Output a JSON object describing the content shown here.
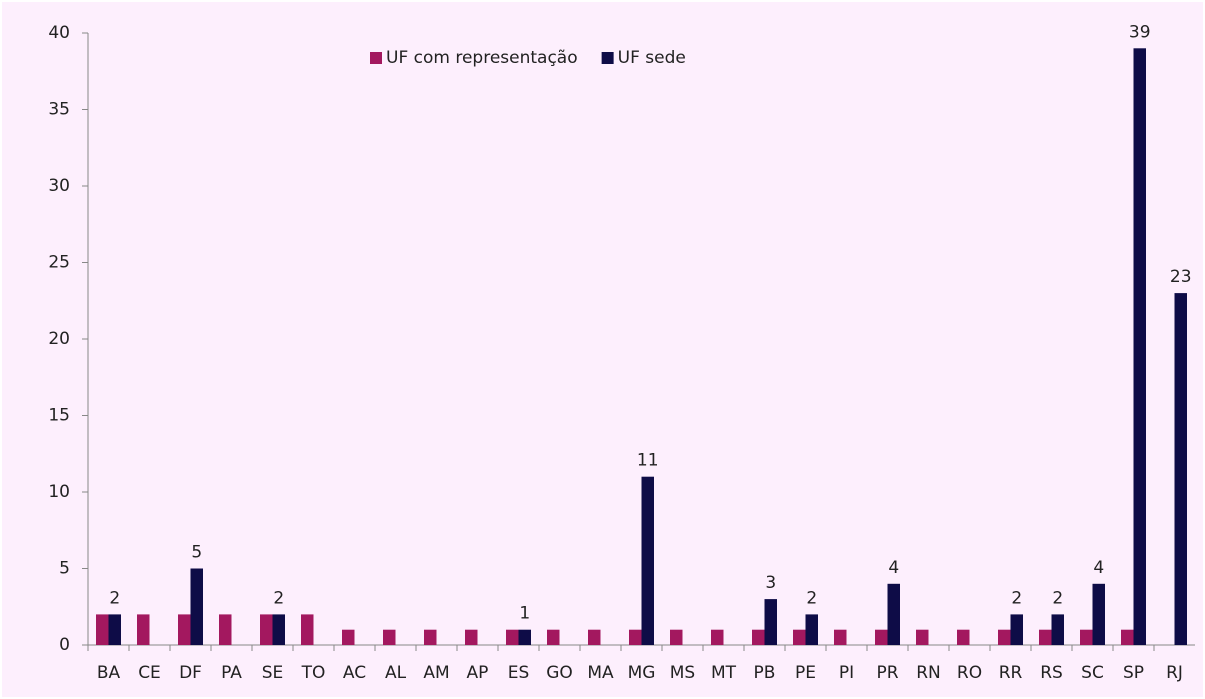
{
  "chart_data": {
    "type": "bar",
    "categories": [
      "BA",
      "CE",
      "DF",
      "PA",
      "SE",
      "TO",
      "AC",
      "AL",
      "AM",
      "AP",
      "ES",
      "GO",
      "MA",
      "MG",
      "MS",
      "MT",
      "PB",
      "PE",
      "PI",
      "PR",
      "RN",
      "RO",
      "RR",
      "RS",
      "SC",
      "SP",
      "RJ"
    ],
    "series": [
      {
        "name": "UF com representação",
        "color": "#a3185f",
        "values": [
          2,
          2,
          2,
          2,
          2,
          2,
          1,
          1,
          1,
          1,
          1,
          1,
          1,
          1,
          1,
          1,
          1,
          1,
          1,
          1,
          1,
          1,
          1,
          1,
          1,
          1,
          null
        ]
      },
      {
        "name": "UF sede",
        "color": "#0e0c47",
        "labels": true,
        "values": [
          2,
          null,
          5,
          null,
          2,
          null,
          null,
          null,
          null,
          null,
          1,
          null,
          null,
          11,
          null,
          null,
          3,
          2,
          null,
          4,
          null,
          null,
          2,
          2,
          4,
          39,
          23
        ]
      }
    ],
    "ylim": [
      0,
      40
    ],
    "yticks": [
      0,
      5,
      10,
      15,
      20,
      25,
      30,
      35,
      40
    ],
    "grid": false
  }
}
